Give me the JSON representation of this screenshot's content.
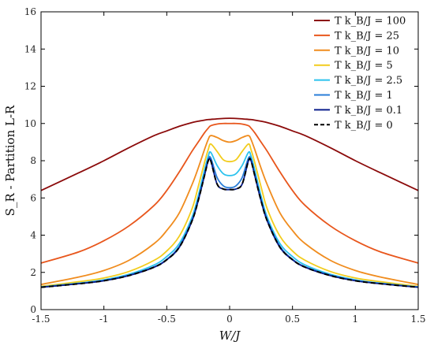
{
  "chart_data": {
    "type": "line",
    "title": "",
    "xlabel": "W/J",
    "ylabel": "S_R - Partition L-R",
    "xlim": [
      -1.5,
      1.5
    ],
    "ylim": [
      0,
      16
    ],
    "x_ticks": [
      -1.5,
      -1,
      -0.5,
      0,
      0.5,
      1,
      1.5
    ],
    "x_tick_labels": [
      "-1.5",
      "-1",
      "-0.5",
      "0",
      "0.5",
      "1",
      "1.5"
    ],
    "y_ticks": [
      0,
      2,
      4,
      6,
      8,
      10,
      12,
      14,
      16
    ],
    "y_tick_labels": [
      "0",
      "2",
      "4",
      "6",
      "8",
      "10",
      "12",
      "14",
      "16"
    ],
    "grid": false,
    "legend_position": "top-right",
    "x": [
      -1.5,
      -1.2,
      -1.0,
      -0.8,
      -0.6,
      -0.5,
      -0.4,
      -0.3,
      -0.25,
      -0.2,
      -0.17,
      -0.15,
      -0.1,
      -0.05,
      0,
      0.05,
      0.1,
      0.15,
      0.17,
      0.2,
      0.25,
      0.3,
      0.4,
      0.5,
      0.6,
      0.8,
      1.0,
      1.2,
      1.5
    ],
    "series": [
      {
        "name": "T k_B/J = 100",
        "color": "#8b0a0a",
        "dashed": false,
        "values": [
          6.4,
          7.35,
          8.0,
          8.7,
          9.35,
          9.6,
          9.85,
          10.05,
          10.12,
          10.18,
          10.21,
          10.22,
          10.25,
          10.27,
          10.28,
          10.27,
          10.25,
          10.22,
          10.21,
          10.18,
          10.12,
          10.05,
          9.85,
          9.6,
          9.35,
          8.7,
          8.0,
          7.35,
          6.4
        ]
      },
      {
        "name": "T k_B/J = 25",
        "color": "#e8561c",
        "dashed": false,
        "values": [
          2.5,
          3.1,
          3.7,
          4.5,
          5.6,
          6.4,
          7.4,
          8.5,
          9.0,
          9.5,
          9.75,
          9.88,
          9.97,
          10.0,
          10.0,
          10.0,
          9.97,
          9.88,
          9.75,
          9.5,
          9.0,
          8.5,
          7.4,
          6.4,
          5.6,
          4.5,
          3.7,
          3.1,
          2.5
        ]
      },
      {
        "name": "T k_B/J = 10",
        "color": "#f08c1e",
        "dashed": false,
        "values": [
          1.35,
          1.75,
          2.1,
          2.65,
          3.55,
          4.25,
          5.2,
          6.7,
          7.6,
          8.6,
          9.15,
          9.35,
          9.25,
          9.08,
          9.0,
          9.08,
          9.25,
          9.35,
          9.15,
          8.6,
          7.6,
          6.7,
          5.2,
          4.25,
          3.55,
          2.65,
          2.1,
          1.75,
          1.35
        ]
      },
      {
        "name": "T k_B/J = 5",
        "color": "#f2cc1c",
        "dashed": false,
        "values": [
          1.25,
          1.5,
          1.7,
          2.05,
          2.65,
          3.15,
          3.95,
          5.4,
          6.6,
          7.9,
          8.6,
          8.9,
          8.5,
          8.05,
          7.95,
          8.05,
          8.5,
          8.9,
          8.6,
          7.9,
          6.6,
          5.4,
          3.95,
          3.15,
          2.65,
          2.05,
          1.7,
          1.5,
          1.25
        ]
      },
      {
        "name": "T k_B/J = 2.5",
        "color": "#2bc2ee",
        "dashed": false,
        "values": [
          1.22,
          1.42,
          1.6,
          1.9,
          2.4,
          2.85,
          3.55,
          4.95,
          6.1,
          7.5,
          8.25,
          8.45,
          7.75,
          7.3,
          7.2,
          7.3,
          7.75,
          8.45,
          8.25,
          7.5,
          6.1,
          4.95,
          3.55,
          2.85,
          2.4,
          1.9,
          1.6,
          1.42,
          1.22
        ]
      },
      {
        "name": "T k_B/J = 1",
        "color": "#2a7ed8",
        "dashed": false,
        "values": [
          1.2,
          1.4,
          1.56,
          1.85,
          2.3,
          2.7,
          3.4,
          4.8,
          5.9,
          7.25,
          8.05,
          8.15,
          7.1,
          6.65,
          6.55,
          6.65,
          7.1,
          8.15,
          8.05,
          7.25,
          5.9,
          4.8,
          3.4,
          2.7,
          2.3,
          1.85,
          1.56,
          1.4,
          1.2
        ]
      },
      {
        "name": "T k_B/J = 0.1",
        "color": "#0a1e8c",
        "dashed": false,
        "values": [
          1.2,
          1.39,
          1.55,
          1.83,
          2.28,
          2.68,
          3.35,
          4.75,
          5.85,
          7.2,
          8.0,
          8.0,
          6.75,
          6.48,
          6.45,
          6.48,
          6.75,
          8.0,
          8.0,
          7.2,
          5.85,
          4.75,
          3.35,
          2.68,
          2.28,
          1.83,
          1.55,
          1.39,
          1.2
        ]
      },
      {
        "name": "T k_B/J = 0",
        "color": "#000000",
        "dashed": true,
        "values": [
          1.2,
          1.39,
          1.55,
          1.83,
          2.28,
          2.68,
          3.35,
          4.75,
          5.85,
          7.2,
          8.0,
          8.0,
          6.75,
          6.48,
          6.45,
          6.48,
          6.75,
          8.0,
          8.0,
          7.2,
          5.85,
          4.75,
          3.35,
          2.68,
          2.28,
          1.83,
          1.55,
          1.39,
          1.2
        ]
      }
    ]
  }
}
